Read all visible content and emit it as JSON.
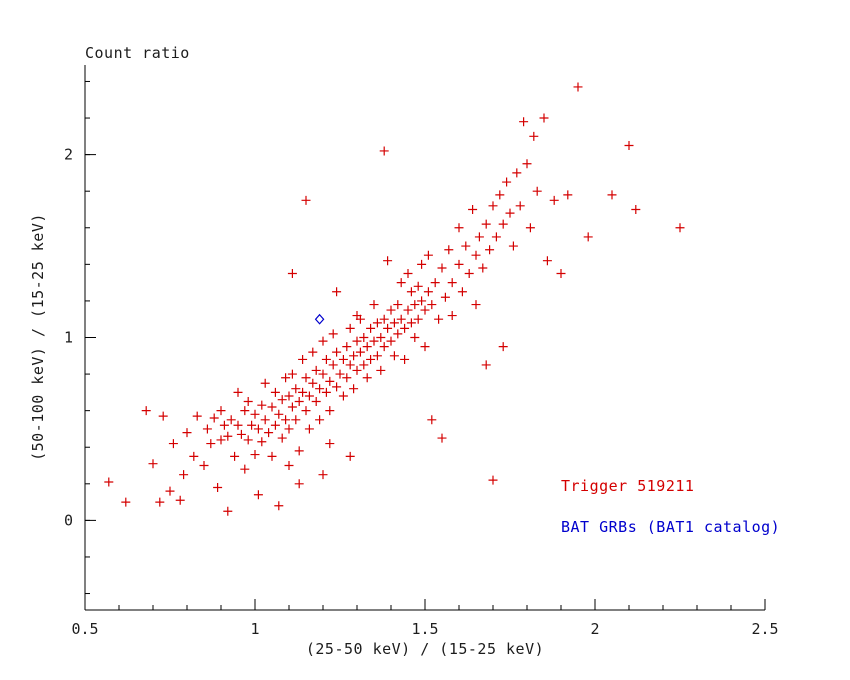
{
  "colors": {
    "axis": "#000000",
    "text": "#1c1c1c",
    "trigger_red": "#d40000",
    "catalog_blue": "#0000cd",
    "background": "#ffffff"
  },
  "chart_data": {
    "type": "scatter",
    "title": "Count ratio",
    "xlabel": "(25-50 keV) / (15-25 keV)",
    "ylabel": "(50-100 keV) / (15-25 keV)",
    "xlim": [
      0.5,
      2.5
    ],
    "ylim": [
      -0.49,
      2.49
    ],
    "x_ticks_major": [
      0.5,
      1.0,
      1.5,
      2.0,
      2.5
    ],
    "x_tick_labels": [
      "0.5",
      "1",
      "1.5",
      "2",
      "2.5"
    ],
    "x_minor_step": 0.1,
    "y_ticks_major": [
      0,
      1,
      2
    ],
    "y_tick_labels": [
      "0",
      "1",
      "2"
    ],
    "y_minor_step": 0.2,
    "grid": false,
    "legend_position": "inside-lower-right",
    "annotations": [
      {
        "text": "Trigger 519211",
        "color": "#d40000",
        "x": 1.9,
        "y": 0.18
      },
      {
        "text": "BAT GRBs (BAT1 catalog)",
        "color": "#0000cd",
        "x": 1.9,
        "y": -0.04
      }
    ],
    "series": [
      {
        "name": "Trigger 519211",
        "marker": "plus",
        "color": "#d40000",
        "points": [
          [
            0.57,
            0.21
          ],
          [
            0.62,
            0.1
          ],
          [
            0.68,
            0.6
          ],
          [
            0.7,
            0.31
          ],
          [
            0.72,
            0.1
          ],
          [
            0.73,
            0.57
          ],
          [
            0.75,
            0.16
          ],
          [
            0.76,
            0.42
          ],
          [
            0.78,
            0.11
          ],
          [
            0.79,
            0.25
          ],
          [
            0.8,
            0.48
          ],
          [
            0.82,
            0.35
          ],
          [
            0.83,
            0.57
          ],
          [
            0.85,
            0.3
          ],
          [
            0.86,
            0.5
          ],
          [
            0.87,
            0.42
          ],
          [
            0.88,
            0.56
          ],
          [
            0.89,
            0.18
          ],
          [
            0.9,
            0.44
          ],
          [
            0.9,
            0.6
          ],
          [
            0.91,
            0.52
          ],
          [
            0.92,
            0.05
          ],
          [
            0.92,
            0.46
          ],
          [
            0.93,
            0.55
          ],
          [
            0.94,
            0.35
          ],
          [
            0.95,
            0.52
          ],
          [
            0.95,
            0.7
          ],
          [
            0.96,
            0.47
          ],
          [
            0.97,
            0.6
          ],
          [
            0.97,
            0.28
          ],
          [
            0.98,
            0.44
          ],
          [
            0.98,
            0.65
          ],
          [
            0.99,
            0.52
          ],
          [
            1.0,
            0.36
          ],
          [
            1.0,
            0.58
          ],
          [
            1.01,
            0.14
          ],
          [
            1.01,
            0.5
          ],
          [
            1.02,
            0.63
          ],
          [
            1.02,
            0.43
          ],
          [
            1.03,
            0.55
          ],
          [
            1.03,
            0.75
          ],
          [
            1.04,
            0.48
          ],
          [
            1.05,
            0.62
          ],
          [
            1.05,
            0.35
          ],
          [
            1.06,
            0.52
          ],
          [
            1.06,
            0.7
          ],
          [
            1.07,
            0.08
          ],
          [
            1.07,
            0.58
          ],
          [
            1.08,
            0.45
          ],
          [
            1.08,
            0.66
          ],
          [
            1.09,
            0.55
          ],
          [
            1.09,
            0.78
          ],
          [
            1.1,
            0.5
          ],
          [
            1.1,
            0.68
          ],
          [
            1.1,
            0.3
          ],
          [
            1.11,
            0.62
          ],
          [
            1.11,
            0.8
          ],
          [
            1.12,
            0.55
          ],
          [
            1.12,
            0.72
          ],
          [
            1.13,
            0.65
          ],
          [
            1.13,
            0.38
          ],
          [
            1.14,
            0.7
          ],
          [
            1.14,
            0.88
          ],
          [
            1.15,
            0.6
          ],
          [
            1.15,
            0.78
          ],
          [
            1.15,
            1.75
          ],
          [
            1.16,
            0.68
          ],
          [
            1.16,
            0.5
          ],
          [
            1.17,
            0.75
          ],
          [
            1.17,
            0.92
          ],
          [
            1.18,
            0.65
          ],
          [
            1.18,
            0.82
          ],
          [
            1.19,
            0.72
          ],
          [
            1.19,
            0.55
          ],
          [
            1.2,
            0.8
          ],
          [
            1.2,
            0.98
          ],
          [
            1.2,
            0.25
          ],
          [
            1.21,
            0.7
          ],
          [
            1.21,
            0.88
          ],
          [
            1.22,
            0.76
          ],
          [
            1.22,
            0.6
          ],
          [
            1.23,
            0.85
          ],
          [
            1.23,
            1.02
          ],
          [
            1.24,
            0.73
          ],
          [
            1.24,
            0.92
          ],
          [
            1.25,
            0.8
          ],
          [
            1.26,
            0.88
          ],
          [
            1.26,
            0.68
          ],
          [
            1.27,
            0.95
          ],
          [
            1.27,
            0.78
          ],
          [
            1.28,
            0.85
          ],
          [
            1.28,
            1.05
          ],
          [
            1.29,
            0.9
          ],
          [
            1.29,
            0.72
          ],
          [
            1.3,
            0.98
          ],
          [
            1.3,
            0.82
          ],
          [
            1.3,
            1.12
          ],
          [
            1.11,
            1.35
          ],
          [
            1.13,
            0.2
          ],
          [
            1.22,
            0.42
          ],
          [
            1.28,
            0.35
          ],
          [
            1.24,
            1.25
          ],
          [
            1.31,
            0.92
          ],
          [
            1.31,
            1.1
          ],
          [
            1.32,
            0.85
          ],
          [
            1.32,
            1.0
          ],
          [
            1.33,
            0.95
          ],
          [
            1.33,
            0.78
          ],
          [
            1.34,
            1.05
          ],
          [
            1.34,
            0.88
          ],
          [
            1.35,
            0.98
          ],
          [
            1.35,
            1.18
          ],
          [
            1.36,
            0.9
          ],
          [
            1.36,
            1.08
          ],
          [
            1.37,
            1.0
          ],
          [
            1.37,
            0.82
          ],
          [
            1.38,
            1.1
          ],
          [
            1.38,
            0.95
          ],
          [
            1.38,
            2.02
          ],
          [
            1.39,
            1.05
          ],
          [
            1.39,
            1.42
          ],
          [
            1.4,
            0.98
          ],
          [
            1.4,
            1.15
          ],
          [
            1.41,
            1.08
          ],
          [
            1.41,
            0.9
          ],
          [
            1.42,
            1.18
          ],
          [
            1.42,
            1.02
          ],
          [
            1.43,
            1.1
          ],
          [
            1.43,
            1.3
          ],
          [
            1.44,
            1.05
          ],
          [
            1.44,
            0.88
          ],
          [
            1.45,
            1.15
          ],
          [
            1.45,
            1.35
          ],
          [
            1.46,
            1.08
          ],
          [
            1.46,
            1.25
          ],
          [
            1.47,
            1.18
          ],
          [
            1.47,
            1.0
          ],
          [
            1.48,
            1.28
          ],
          [
            1.48,
            1.1
          ],
          [
            1.49,
            1.2
          ],
          [
            1.49,
            1.4
          ],
          [
            1.5,
            1.15
          ],
          [
            1.5,
            0.95
          ],
          [
            1.51,
            1.25
          ],
          [
            1.51,
            1.45
          ],
          [
            1.52,
            1.18
          ],
          [
            1.52,
            0.55
          ],
          [
            1.53,
            1.3
          ],
          [
            1.54,
            1.1
          ],
          [
            1.55,
            1.38
          ],
          [
            1.55,
            0.45
          ],
          [
            1.56,
            1.22
          ],
          [
            1.57,
            1.48
          ],
          [
            1.58,
            1.3
          ],
          [
            1.58,
            1.12
          ],
          [
            1.6,
            1.4
          ],
          [
            1.6,
            1.6
          ],
          [
            1.61,
            1.25
          ],
          [
            1.62,
            1.5
          ],
          [
            1.63,
            1.35
          ],
          [
            1.64,
            1.7
          ],
          [
            1.65,
            1.45
          ],
          [
            1.65,
            1.18
          ],
          [
            1.66,
            1.55
          ],
          [
            1.67,
            1.38
          ],
          [
            1.68,
            1.62
          ],
          [
            1.68,
            0.85
          ],
          [
            1.69,
            1.48
          ],
          [
            1.7,
            1.72
          ],
          [
            1.7,
            0.22
          ],
          [
            1.71,
            1.55
          ],
          [
            1.72,
            1.78
          ],
          [
            1.73,
            0.95
          ],
          [
            1.73,
            1.62
          ],
          [
            1.74,
            1.85
          ],
          [
            1.75,
            1.68
          ],
          [
            1.76,
            1.5
          ],
          [
            1.77,
            1.9
          ],
          [
            1.78,
            1.72
          ],
          [
            1.79,
            2.18
          ],
          [
            1.8,
            1.95
          ],
          [
            1.81,
            1.6
          ],
          [
            1.82,
            2.1
          ],
          [
            1.83,
            1.8
          ],
          [
            1.85,
            2.2
          ],
          [
            1.86,
            1.42
          ],
          [
            1.88,
            1.75
          ],
          [
            1.9,
            1.35
          ],
          [
            1.92,
            1.78
          ],
          [
            1.95,
            2.37
          ],
          [
            1.98,
            1.55
          ],
          [
            2.05,
            1.78
          ],
          [
            2.1,
            2.05
          ],
          [
            2.12,
            1.7
          ],
          [
            2.25,
            1.6
          ]
        ]
      },
      {
        "name": "BAT GRBs (BAT1 catalog)",
        "marker": "open-diamond",
        "color": "#0000cd",
        "points": [
          [
            1.19,
            1.1
          ]
        ]
      }
    ]
  }
}
